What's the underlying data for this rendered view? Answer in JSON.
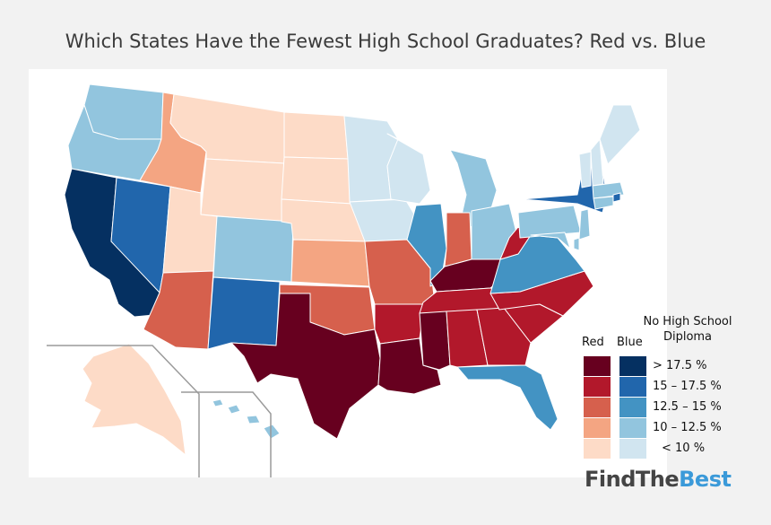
{
  "title": "Which States Have the Fewest High School Graduates? Red vs. Blue",
  "legend": {
    "title_line1": "No High School",
    "title_line2": "Diploma",
    "red_label": "Red",
    "blue_label": "Blue",
    "bins": [
      {
        "label": "> 17.5 %",
        "red": "#67001f",
        "blue": "#053061"
      },
      {
        "label": "15 – 17.5 %",
        "red": "#b2182b",
        "blue": "#2166ac"
      },
      {
        "label": "12.5 – 15 %",
        "red": "#d6604d",
        "blue": "#4393c3"
      },
      {
        "label": "10 – 12.5 %",
        "red": "#f4a582",
        "blue": "#92c5de"
      },
      {
        "label": "< 10 %",
        "red": "#fddbc7",
        "blue": "#d1e5f0"
      }
    ]
  },
  "brand": {
    "part1": "FindThe",
    "part2": "Best"
  },
  "map": {
    "states": [
      {
        "code": "WA",
        "name": "Washington",
        "bin": 3,
        "party": "blue"
      },
      {
        "code": "OR",
        "name": "Oregon",
        "bin": 3,
        "party": "blue"
      },
      {
        "code": "CA",
        "name": "California",
        "bin": 0,
        "party": "blue"
      },
      {
        "code": "NV",
        "name": "Nevada",
        "bin": 1,
        "party": "blue"
      },
      {
        "code": "ID",
        "name": "Idaho",
        "bin": 3,
        "party": "red"
      },
      {
        "code": "MT",
        "name": "Montana",
        "bin": 4,
        "party": "red"
      },
      {
        "code": "WY",
        "name": "Wyoming",
        "bin": 4,
        "party": "red"
      },
      {
        "code": "UT",
        "name": "Utah",
        "bin": 4,
        "party": "red"
      },
      {
        "code": "AZ",
        "name": "Arizona",
        "bin": 2,
        "party": "red"
      },
      {
        "code": "CO",
        "name": "Colorado",
        "bin": 3,
        "party": "blue"
      },
      {
        "code": "NM",
        "name": "New Mexico",
        "bin": 1,
        "party": "blue"
      },
      {
        "code": "ND",
        "name": "North Dakota",
        "bin": 4,
        "party": "red"
      },
      {
        "code": "SD",
        "name": "South Dakota",
        "bin": 4,
        "party": "red"
      },
      {
        "code": "NE",
        "name": "Nebraska",
        "bin": 4,
        "party": "red"
      },
      {
        "code": "KS",
        "name": "Kansas",
        "bin": 3,
        "party": "red"
      },
      {
        "code": "OK",
        "name": "Oklahoma",
        "bin": 2,
        "party": "red"
      },
      {
        "code": "TX",
        "name": "Texas",
        "bin": 0,
        "party": "red"
      },
      {
        "code": "MN",
        "name": "Minnesota",
        "bin": 4,
        "party": "blue"
      },
      {
        "code": "IA",
        "name": "Iowa",
        "bin": 4,
        "party": "blue"
      },
      {
        "code": "MO",
        "name": "Missouri",
        "bin": 2,
        "party": "red"
      },
      {
        "code": "AR",
        "name": "Arkansas",
        "bin": 1,
        "party": "red"
      },
      {
        "code": "LA",
        "name": "Louisiana",
        "bin": 0,
        "party": "red"
      },
      {
        "code": "WI",
        "name": "Wisconsin",
        "bin": 4,
        "party": "blue"
      },
      {
        "code": "IL",
        "name": "Illinois",
        "bin": 2,
        "party": "blue"
      },
      {
        "code": "MI",
        "name": "Michigan",
        "bin": 3,
        "party": "blue"
      },
      {
        "code": "IN",
        "name": "Indiana",
        "bin": 2,
        "party": "red"
      },
      {
        "code": "OH",
        "name": "Ohio",
        "bin": 3,
        "party": "blue"
      },
      {
        "code": "KY",
        "name": "Kentucky",
        "bin": 0,
        "party": "red"
      },
      {
        "code": "TN",
        "name": "Tennessee",
        "bin": 1,
        "party": "red"
      },
      {
        "code": "MS",
        "name": "Mississippi",
        "bin": 0,
        "party": "red"
      },
      {
        "code": "AL",
        "name": "Alabama",
        "bin": 1,
        "party": "red"
      },
      {
        "code": "GA",
        "name": "Georgia",
        "bin": 1,
        "party": "red"
      },
      {
        "code": "FL",
        "name": "Florida",
        "bin": 2,
        "party": "blue"
      },
      {
        "code": "SC",
        "name": "South Carolina",
        "bin": 1,
        "party": "red"
      },
      {
        "code": "NC",
        "name": "North Carolina",
        "bin": 1,
        "party": "red"
      },
      {
        "code": "VA",
        "name": "Virginia",
        "bin": 2,
        "party": "blue"
      },
      {
        "code": "WV",
        "name": "West Virginia",
        "bin": 1,
        "party": "red"
      },
      {
        "code": "PA",
        "name": "Pennsylvania",
        "bin": 3,
        "party": "blue"
      },
      {
        "code": "NY",
        "name": "New York",
        "bin": 1,
        "party": "blue"
      },
      {
        "code": "VT",
        "name": "Vermont",
        "bin": 4,
        "party": "blue"
      },
      {
        "code": "NH",
        "name": "New Hampshire",
        "bin": 4,
        "party": "blue"
      },
      {
        "code": "ME",
        "name": "Maine",
        "bin": 4,
        "party": "blue"
      },
      {
        "code": "MA",
        "name": "Massachusetts",
        "bin": 3,
        "party": "blue"
      },
      {
        "code": "RI",
        "name": "Rhode Island",
        "bin": 1,
        "party": "blue"
      },
      {
        "code": "CT",
        "name": "Connecticut",
        "bin": 3,
        "party": "blue"
      },
      {
        "code": "NJ",
        "name": "New Jersey",
        "bin": 3,
        "party": "blue"
      },
      {
        "code": "DE",
        "name": "Delaware",
        "bin": 3,
        "party": "blue"
      },
      {
        "code": "MD",
        "name": "Maryland",
        "bin": 3,
        "party": "blue"
      },
      {
        "code": "AK",
        "name": "Alaska",
        "bin": 4,
        "party": "red"
      },
      {
        "code": "HI",
        "name": "Hawaii",
        "bin": 3,
        "party": "blue"
      }
    ]
  }
}
